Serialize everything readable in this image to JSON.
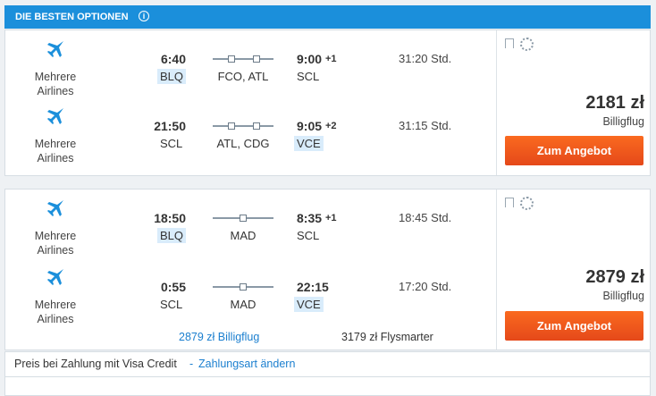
{
  "header": {
    "title": "DIE BESTEN OPTIONEN"
  },
  "results": [
    {
      "legs": [
        {
          "airline": "Mehrere Airlines",
          "dep_time": "6:40",
          "dep_airport": "BLQ",
          "stops": "FCO, ATL",
          "arr_time": "9:00",
          "day_offset": "+1",
          "arr_airport": "SCL",
          "duration": "31:20 Std."
        },
        {
          "airline": "Mehrere Airlines",
          "dep_time": "21:50",
          "dep_airport": "SCL",
          "stops": "ATL, CDG",
          "arr_time": "9:05",
          "day_offset": "+2",
          "arr_airport": "VCE",
          "duration": "31:15 Std."
        }
      ],
      "price": "2181 zł",
      "fare": "Billigflug",
      "button": "Zum Angebot"
    },
    {
      "legs": [
        {
          "airline": "Mehrere Airlines",
          "dep_time": "18:50",
          "dep_airport": "BLQ",
          "stops": "MAD",
          "arr_time": "8:35",
          "day_offset": "+1",
          "arr_airport": "SCL",
          "duration": "18:45 Std."
        },
        {
          "airline": "Mehrere Airlines",
          "dep_time": "0:55",
          "dep_airport": "SCL",
          "stops": "MAD",
          "arr_time": "22:15",
          "arr_airport": "VCE",
          "duration": "17:20 Std."
        }
      ],
      "price": "2879 zł",
      "fare": "Billigflug",
      "button": "Zum Angebot",
      "other_offers": [
        "2879 zł Billigflug",
        "3179 zł Flysmarter"
      ]
    }
  ],
  "footer": {
    "text": "Preis bei Zahlung mit Visa Credit",
    "separator": "-",
    "link": "Zahlungsart ändern"
  }
}
